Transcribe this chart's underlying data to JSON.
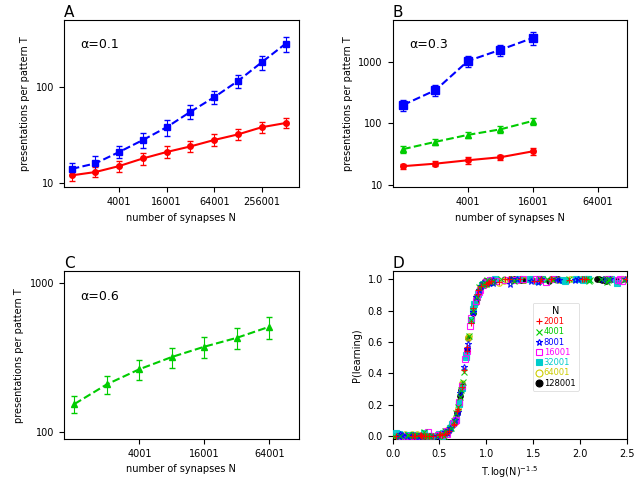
{
  "panel_A": {
    "alpha_label": "α=0.1",
    "N_values": [
      1001,
      2001,
      4001,
      8001,
      16001,
      32001,
      64001,
      128001,
      256001,
      512001
    ],
    "red_y": [
      12,
      13,
      15,
      18,
      21,
      24,
      28,
      32,
      38,
      42
    ],
    "red_yerr": [
      1.5,
      1.5,
      2,
      2.5,
      3,
      3,
      4,
      4,
      5,
      5
    ],
    "blue_y": [
      14,
      16,
      21,
      28,
      38,
      55,
      78,
      115,
      180,
      280
    ],
    "blue_yerr": [
      2,
      3,
      3,
      5,
      7,
      9,
      12,
      18,
      30,
      50
    ],
    "xticks": [
      4001,
      16001,
      64001,
      256001
    ],
    "xlim": [
      800,
      750000
    ],
    "ylim": [
      9,
      500
    ]
  },
  "panel_B": {
    "alpha_label": "α=0.3",
    "N_values": [
      1001,
      2001,
      4001,
      8001,
      16001
    ],
    "red_y": [
      20,
      22,
      25,
      28,
      35
    ],
    "red_yerr": [
      2,
      2,
      3,
      3,
      4
    ],
    "green_y": [
      38,
      50,
      65,
      80,
      110
    ],
    "green_yerr": [
      5,
      6,
      8,
      10,
      14
    ],
    "blue_y": [
      200,
      350,
      1050,
      1600,
      2500
    ],
    "blue_yerr": [
      40,
      70,
      200,
      350,
      600
    ],
    "xticks": [
      4001,
      16001,
      64001
    ],
    "xlim": [
      800,
      120000
    ],
    "ylim": [
      9,
      5000
    ]
  },
  "panel_C": {
    "alpha_label": "α=0.6",
    "N_values": [
      1001,
      2001,
      4001,
      8001,
      16001,
      32001,
      64001
    ],
    "green_y": [
      155,
      210,
      265,
      320,
      375,
      430,
      510
    ],
    "green_yerr": [
      20,
      28,
      40,
      50,
      60,
      70,
      85
    ],
    "xticks": [
      4001,
      16001,
      64001
    ],
    "xlim": [
      800,
      120000
    ],
    "ylim": [
      90,
      1200
    ]
  },
  "panel_D": {
    "xlabel": "T.log(N)$^{-1.5}$",
    "ylabel": "P(learning)",
    "xlim": [
      0,
      2.5
    ],
    "ylim": [
      -0.02,
      1.05
    ],
    "N_legend": [
      "2001",
      "4001",
      "8001",
      "16001",
      "32001",
      "64001",
      "128001"
    ],
    "legend_markers": [
      "+",
      "x",
      "*",
      "s",
      "s",
      "o",
      "o"
    ],
    "legend_colors": [
      "#ff0000",
      "#00cc00",
      "#0000ff",
      "#ff00ff",
      "#00cccc",
      "#cccc00",
      "#000000"
    ],
    "legend_fills": [
      false,
      false,
      false,
      false,
      true,
      false,
      true
    ]
  },
  "colors": {
    "red": "#ff0000",
    "blue": "#0000ff",
    "green": "#00cc00"
  }
}
